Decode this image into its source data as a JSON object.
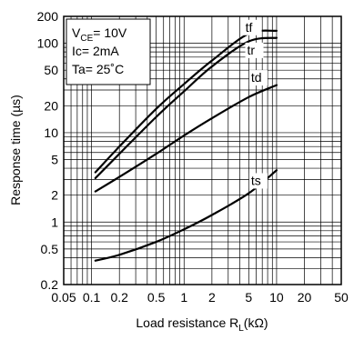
{
  "chart_data": {
    "type": "line",
    "title": "",
    "xlabel": {
      "prefix": "Load resistance R",
      "sub": "L",
      "suffix": "(kΩ)"
    },
    "ylabel": "Response time (µs)",
    "x_scale": "log",
    "y_scale": "log",
    "xlim": [
      0.05,
      50
    ],
    "ylim": [
      0.2,
      200
    ],
    "grid": true,
    "x_ticks": [
      {
        "value": 0.05,
        "label": "0.05"
      },
      {
        "value": 0.1,
        "label": "0.1"
      },
      {
        "value": 0.2,
        "label": "0.2"
      },
      {
        "value": 0.5,
        "label": "0.5"
      },
      {
        "value": 1,
        "label": "1"
      },
      {
        "value": 2,
        "label": "2"
      },
      {
        "value": 5,
        "label": "5"
      },
      {
        "value": 10,
        "label": "10"
      },
      {
        "value": 20,
        "label": "20"
      },
      {
        "value": 50,
        "label": "50"
      }
    ],
    "y_ticks": [
      {
        "value": 0.2,
        "label": "0.2"
      },
      {
        "value": 0.5,
        "label": "0.5"
      },
      {
        "value": 1,
        "label": "1"
      },
      {
        "value": 2,
        "label": "2"
      },
      {
        "value": 5,
        "label": "5"
      },
      {
        "value": 10,
        "label": "10"
      },
      {
        "value": 20,
        "label": "20"
      },
      {
        "value": 50,
        "label": "50"
      },
      {
        "value": 100,
        "label": "100"
      },
      {
        "value": 200,
        "label": "200"
      }
    ],
    "conditions": {
      "vce": {
        "prefix": "V",
        "sub": "CE",
        "suffix": "= 10V"
      },
      "ic": "Ic= 2mA",
      "ta": "Ta= 25˚C"
    },
    "series": [
      {
        "name": "tf",
        "x": [
          0.11,
          0.2,
          0.5,
          1,
          2,
          5,
          10
        ],
        "y": [
          3.6,
          7,
          18.5,
          35,
          64,
          128,
          138
        ]
      },
      {
        "name": "tr",
        "x": [
          0.11,
          0.2,
          0.5,
          1,
          2,
          5,
          10
        ],
        "y": [
          3.1,
          5.8,
          15,
          29,
          55,
          105,
          115
        ]
      },
      {
        "name": "td",
        "x": [
          0.11,
          0.2,
          0.5,
          1,
          2,
          5,
          10
        ],
        "y": [
          2.2,
          3.2,
          5.8,
          9.3,
          14.5,
          25,
          34
        ]
      },
      {
        "name": "ts",
        "x": [
          0.11,
          0.2,
          0.5,
          1,
          2,
          5,
          10
        ],
        "y": [
          0.37,
          0.43,
          0.6,
          0.83,
          1.2,
          2.1,
          3.8
        ]
      }
    ],
    "series_label_positions": {
      "tf": {
        "x": 4.6,
        "y": 135
      },
      "tr": {
        "x": 4.8,
        "y": 75
      },
      "td": {
        "x": 5.3,
        "y": 37
      },
      "ts": {
        "x": 5.3,
        "y": 2.6
      }
    }
  }
}
